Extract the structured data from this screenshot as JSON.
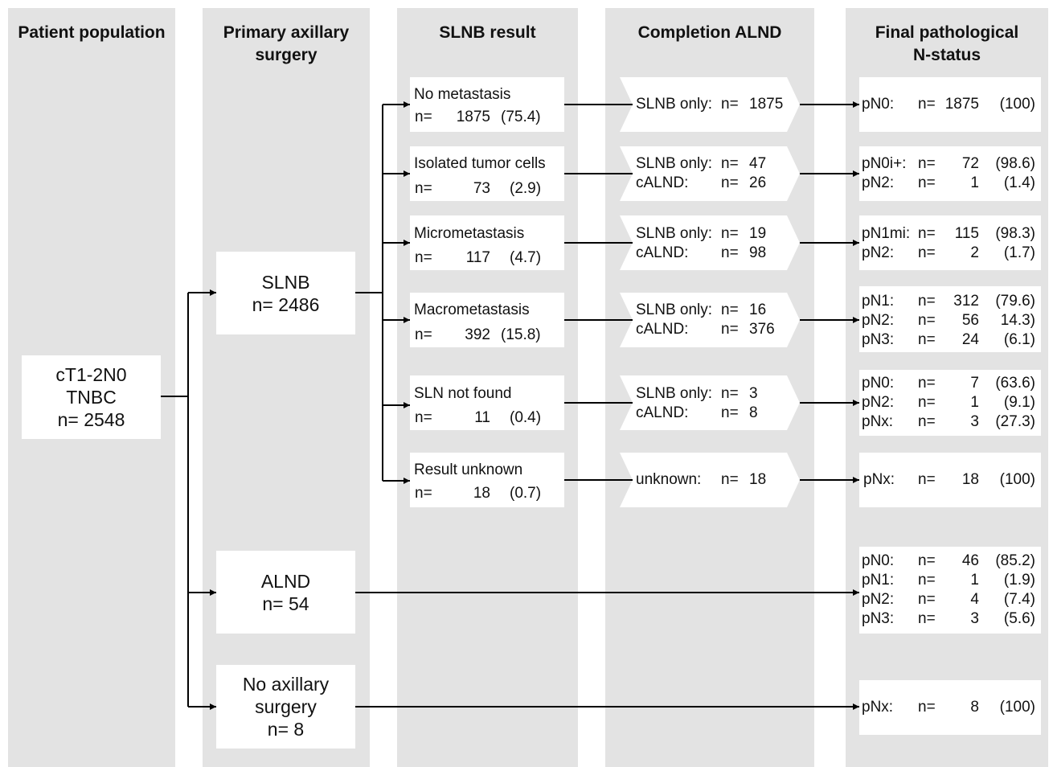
{
  "columns": {
    "population": "Patient population",
    "surgery": [
      "Primary axillary",
      "surgery"
    ],
    "slnb_result": "SLNB result",
    "completion": "Completion ALND",
    "final": [
      "Final pathological",
      "N-status"
    ]
  },
  "patient": {
    "line1": "cT1-2N0",
    "line2": "TNBC",
    "line3": "n= 2548"
  },
  "surgery": {
    "slnb": {
      "line1": "SLNB",
      "line2": "n= 2486"
    },
    "alnd": {
      "line1": "ALND",
      "line2": "n= 54"
    },
    "none": {
      "line1": "No axillary",
      "line2": "surgery",
      "line3": "n= 8"
    }
  },
  "slnb_results": [
    {
      "label": "No metastasis",
      "n_label": "n=",
      "n": "1875",
      "pct": "(75.4)"
    },
    {
      "label": "Isolated tumor cells",
      "n_label": "n=",
      "n": "73",
      "pct": "(2.9)"
    },
    {
      "label": "Micrometastasis",
      "n_label": "n=",
      "n": "117",
      "pct": "(4.7)"
    },
    {
      "label": "Macrometastasis",
      "n_label": "n=",
      "n": "392",
      "pct": "(15.8)"
    },
    {
      "label": "SLN not found",
      "n_label": "n=",
      "n": "11",
      "pct": "(0.4)"
    },
    {
      "label": "Result unknown",
      "n_label": "n=",
      "n": "18",
      "pct": "(0.7)"
    }
  ],
  "completion": [
    {
      "rows": [
        {
          "label": "SLNB only:",
          "n_label": "n=",
          "n": "1875"
        }
      ]
    },
    {
      "rows": [
        {
          "label": "SLNB only:",
          "n_label": "n=",
          "n": "47"
        },
        {
          "label": "cALND:",
          "n_label": "n=",
          "n": "26"
        }
      ]
    },
    {
      "rows": [
        {
          "label": "SLNB only:",
          "n_label": "n=",
          "n": "19"
        },
        {
          "label": "cALND:",
          "n_label": "n=",
          "n": "98"
        }
      ]
    },
    {
      "rows": [
        {
          "label": "SLNB only:",
          "n_label": "n=",
          "n": "16"
        },
        {
          "label": "cALND:",
          "n_label": "n=",
          "n": "376"
        }
      ]
    },
    {
      "rows": [
        {
          "label": "SLNB only:",
          "n_label": "n=",
          "n": "3"
        },
        {
          "label": "cALND:",
          "n_label": "n=",
          "n": "8"
        }
      ]
    },
    {
      "rows": [
        {
          "label": "unknown:",
          "n_label": "n=",
          "n": "18"
        }
      ]
    }
  ],
  "final": [
    {
      "rows": [
        {
          "status": "pN0:",
          "n_label": "n=",
          "n": "1875",
          "pct": "(100)"
        }
      ]
    },
    {
      "rows": [
        {
          "status": "pN0i+:",
          "n_label": "n=",
          "n": "72",
          "pct": "(98.6)"
        },
        {
          "status": "pN2:",
          "n_label": "n=",
          "n": "1",
          "pct": "(1.4)"
        }
      ]
    },
    {
      "rows": [
        {
          "status": "pN1mi:",
          "n_label": "n=",
          "n": "115",
          "pct": "(98.3)"
        },
        {
          "status": "pN2:",
          "n_label": "n=",
          "n": "2",
          "pct": "(1.7)"
        }
      ]
    },
    {
      "rows": [
        {
          "status": "pN1:",
          "n_label": "n=",
          "n": "312",
          "pct": "(79.6)"
        },
        {
          "status": "pN2:",
          "n_label": "n=",
          "n": "56",
          "pct": "14.3)"
        },
        {
          "status": "pN3:",
          "n_label": "n=",
          "n": "24",
          "pct": "(6.1)"
        }
      ]
    },
    {
      "rows": [
        {
          "status": "pN0:",
          "n_label": "n=",
          "n": "7",
          "pct": "(63.6)"
        },
        {
          "status": "pN2:",
          "n_label": "n=",
          "n": "1",
          "pct": "(9.1)"
        },
        {
          "status": "pNx:",
          "n_label": "n=",
          "n": "3",
          "pct": "(27.3)"
        }
      ]
    },
    {
      "rows": [
        {
          "status": "pNx:",
          "n_label": "n=",
          "n": "18",
          "pct": "(100)"
        }
      ]
    },
    {
      "rows": [
        {
          "status": "pN0:",
          "n_label": "n=",
          "n": "46",
          "pct": "(85.2)"
        },
        {
          "status": "pN1:",
          "n_label": "n=",
          "n": "1",
          "pct": "(1.9)"
        },
        {
          "status": "pN2:",
          "n_label": "n=",
          "n": "4",
          "pct": "(7.4)"
        },
        {
          "status": "pN3:",
          "n_label": "n=",
          "n": "3",
          "pct": "(5.6)"
        }
      ]
    },
    {
      "rows": [
        {
          "status": "pNx:",
          "n_label": "n=",
          "n": "8",
          "pct": "(100)"
        }
      ]
    }
  ]
}
